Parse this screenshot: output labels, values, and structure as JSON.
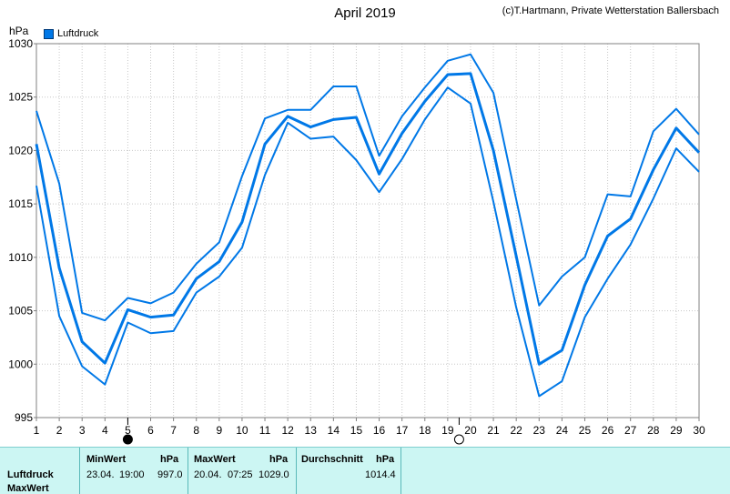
{
  "header": {
    "title": "April 2019",
    "copyright": "(c)T.Hartmann, Private Wetterstation Ballersbach",
    "unit": "hPa"
  },
  "legend": {
    "label": "Luftdruck",
    "color": "#0078e7"
  },
  "chart_data": {
    "type": "line",
    "title": "April 2019",
    "ylabel": "hPa",
    "ylim": [
      995,
      1030
    ],
    "yticks": [
      995,
      1000,
      1005,
      1010,
      1015,
      1020,
      1025,
      1030
    ],
    "xlim": [
      1,
      30
    ],
    "x": [
      1,
      2,
      3,
      4,
      5,
      6,
      7,
      8,
      9,
      10,
      11,
      12,
      13,
      14,
      15,
      16,
      17,
      18,
      19,
      20,
      21,
      22,
      23,
      24,
      25,
      26,
      27,
      28,
      29,
      30
    ],
    "grid": true,
    "legend_position": "top-left",
    "series": [
      {
        "name": "Luftdruck",
        "role": "mean",
        "values": [
          1020.6,
          1009.0,
          1002.1,
          1000.1,
          1005.1,
          1004.4,
          1004.6,
          1008.0,
          1009.6,
          1013.3,
          1020.6,
          1023.2,
          1022.2,
          1022.9,
          1023.1,
          1017.8,
          1021.6,
          1024.6,
          1027.1,
          1027.2,
          1020.0,
          1010.1,
          1000.0,
          1001.3,
          1007.4,
          1012.0,
          1013.6,
          1018.2,
          1022.1,
          1019.8
        ]
      },
      {
        "role": "max",
        "values": [
          1023.7,
          1016.9,
          1004.8,
          1004.1,
          1006.2,
          1005.7,
          1006.7,
          1009.4,
          1011.4,
          1017.6,
          1023.0,
          1023.8,
          1023.8,
          1026.0,
          1026.0,
          1019.5,
          1023.2,
          1025.9,
          1028.4,
          1029.0,
          1025.4,
          1015.4,
          1005.5,
          1008.2,
          1010.0,
          1015.9,
          1015.7,
          1021.8,
          1023.9,
          1021.5
        ]
      },
      {
        "role": "min",
        "values": [
          1016.7,
          1004.5,
          999.8,
          998.1,
          1003.9,
          1002.9,
          1003.1,
          1006.7,
          1008.2,
          1010.9,
          1017.7,
          1022.6,
          1021.1,
          1021.3,
          1019.1,
          1016.1,
          1019.2,
          1022.9,
          1025.9,
          1024.4,
          1015.2,
          1005.3,
          997.0,
          998.4,
          1004.4,
          1008.0,
          1011.2,
          1015.5,
          1020.2,
          1018.0
        ]
      }
    ],
    "moon_phases": [
      {
        "day": 5,
        "phase": "new-moon"
      },
      {
        "day": 19.5,
        "phase": "full-moon"
      }
    ]
  },
  "table": {
    "min_header": "MinWert",
    "min_unit": "hPa",
    "max_header": "MaxWert",
    "max_unit": "hPa",
    "avg_header": "Durchschnitt",
    "avg_unit": "hPa",
    "row1_label": "Luftdruck",
    "row2_label": "MaxWert",
    "min_date": "23.04.",
    "min_time": "19:00",
    "min_value": "997.0",
    "max_date": "20.04.",
    "max_time": "07:25",
    "max_value": "1029.0",
    "avg_value": "1014.4"
  }
}
